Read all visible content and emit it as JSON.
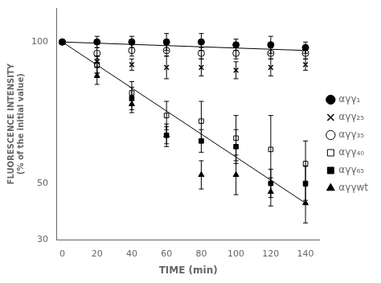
{
  "chart_data": {
    "type": "scatter",
    "xlabel": "TIME (min)",
    "ylabel": [
      "FLUORESCENCE INTENSITY",
      "(% of the initial value)"
    ],
    "x": [
      0,
      20,
      40,
      60,
      80,
      100,
      120,
      140
    ],
    "series": [
      {
        "name": "αγγ₁",
        "color": "#000000",
        "marker": "circle",
        "values": [
          100,
          100,
          100,
          100,
          100,
          99,
          99,
          98
        ],
        "errors": [
          0,
          2,
          2,
          3,
          3,
          2,
          3,
          2
        ]
      },
      {
        "name": "αγγ₂₅",
        "color": "#000000",
        "marker": "x",
        "values": [
          100,
          93,
          92,
          91,
          91,
          90,
          91,
          92
        ],
        "errors": [
          0,
          2,
          2,
          4,
          3,
          3,
          3,
          2
        ]
      },
      {
        "name": "αγγ₃₅",
        "color": "#000000",
        "marker": "open_circle",
        "values": [
          100,
          96,
          97,
          97,
          96,
          96,
          96,
          96
        ],
        "errors": [
          0,
          2,
          2,
          2,
          2,
          2,
          2,
          2
        ]
      },
      {
        "name": "αγγ₄₀",
        "color": "#000000",
        "marker": "open_square",
        "values": [
          100,
          92,
          82,
          74,
          72,
          66,
          62,
          57
        ],
        "errors": [
          0,
          3,
          4,
          5,
          7,
          8,
          12,
          8
        ]
      },
      {
        "name": "αγγ₆₅",
        "color": "#000000",
        "marker": "square",
        "values": [
          100,
          92,
          80,
          67,
          65,
          63,
          50,
          50
        ],
        "errors": [
          0,
          3,
          4,
          4,
          4,
          6,
          5,
          6
        ]
      },
      {
        "name": "αγγwt",
        "color": "#000000",
        "marker": "triangle",
        "values": [
          100,
          88,
          78,
          67,
          53,
          53,
          47,
          43
        ],
        "errors": [
          0,
          3,
          3,
          3,
          5,
          7,
          5,
          7
        ]
      }
    ],
    "fit_lines": [
      {
        "color": "#000000",
        "x": [
          0,
          140
        ],
        "values": [
          100,
          97
        ]
      },
      {
        "color": "#000000",
        "x": [
          0,
          140
        ],
        "values": [
          100,
          43
        ]
      }
    ],
    "xlim": [
      -3,
      148
    ],
    "ylim": [
      30,
      112
    ],
    "xticks": [
      0,
      20,
      40,
      60,
      80,
      100,
      120,
      140
    ],
    "yticks": [
      30,
      50,
      100
    ],
    "grid": false,
    "legend": "right"
  }
}
